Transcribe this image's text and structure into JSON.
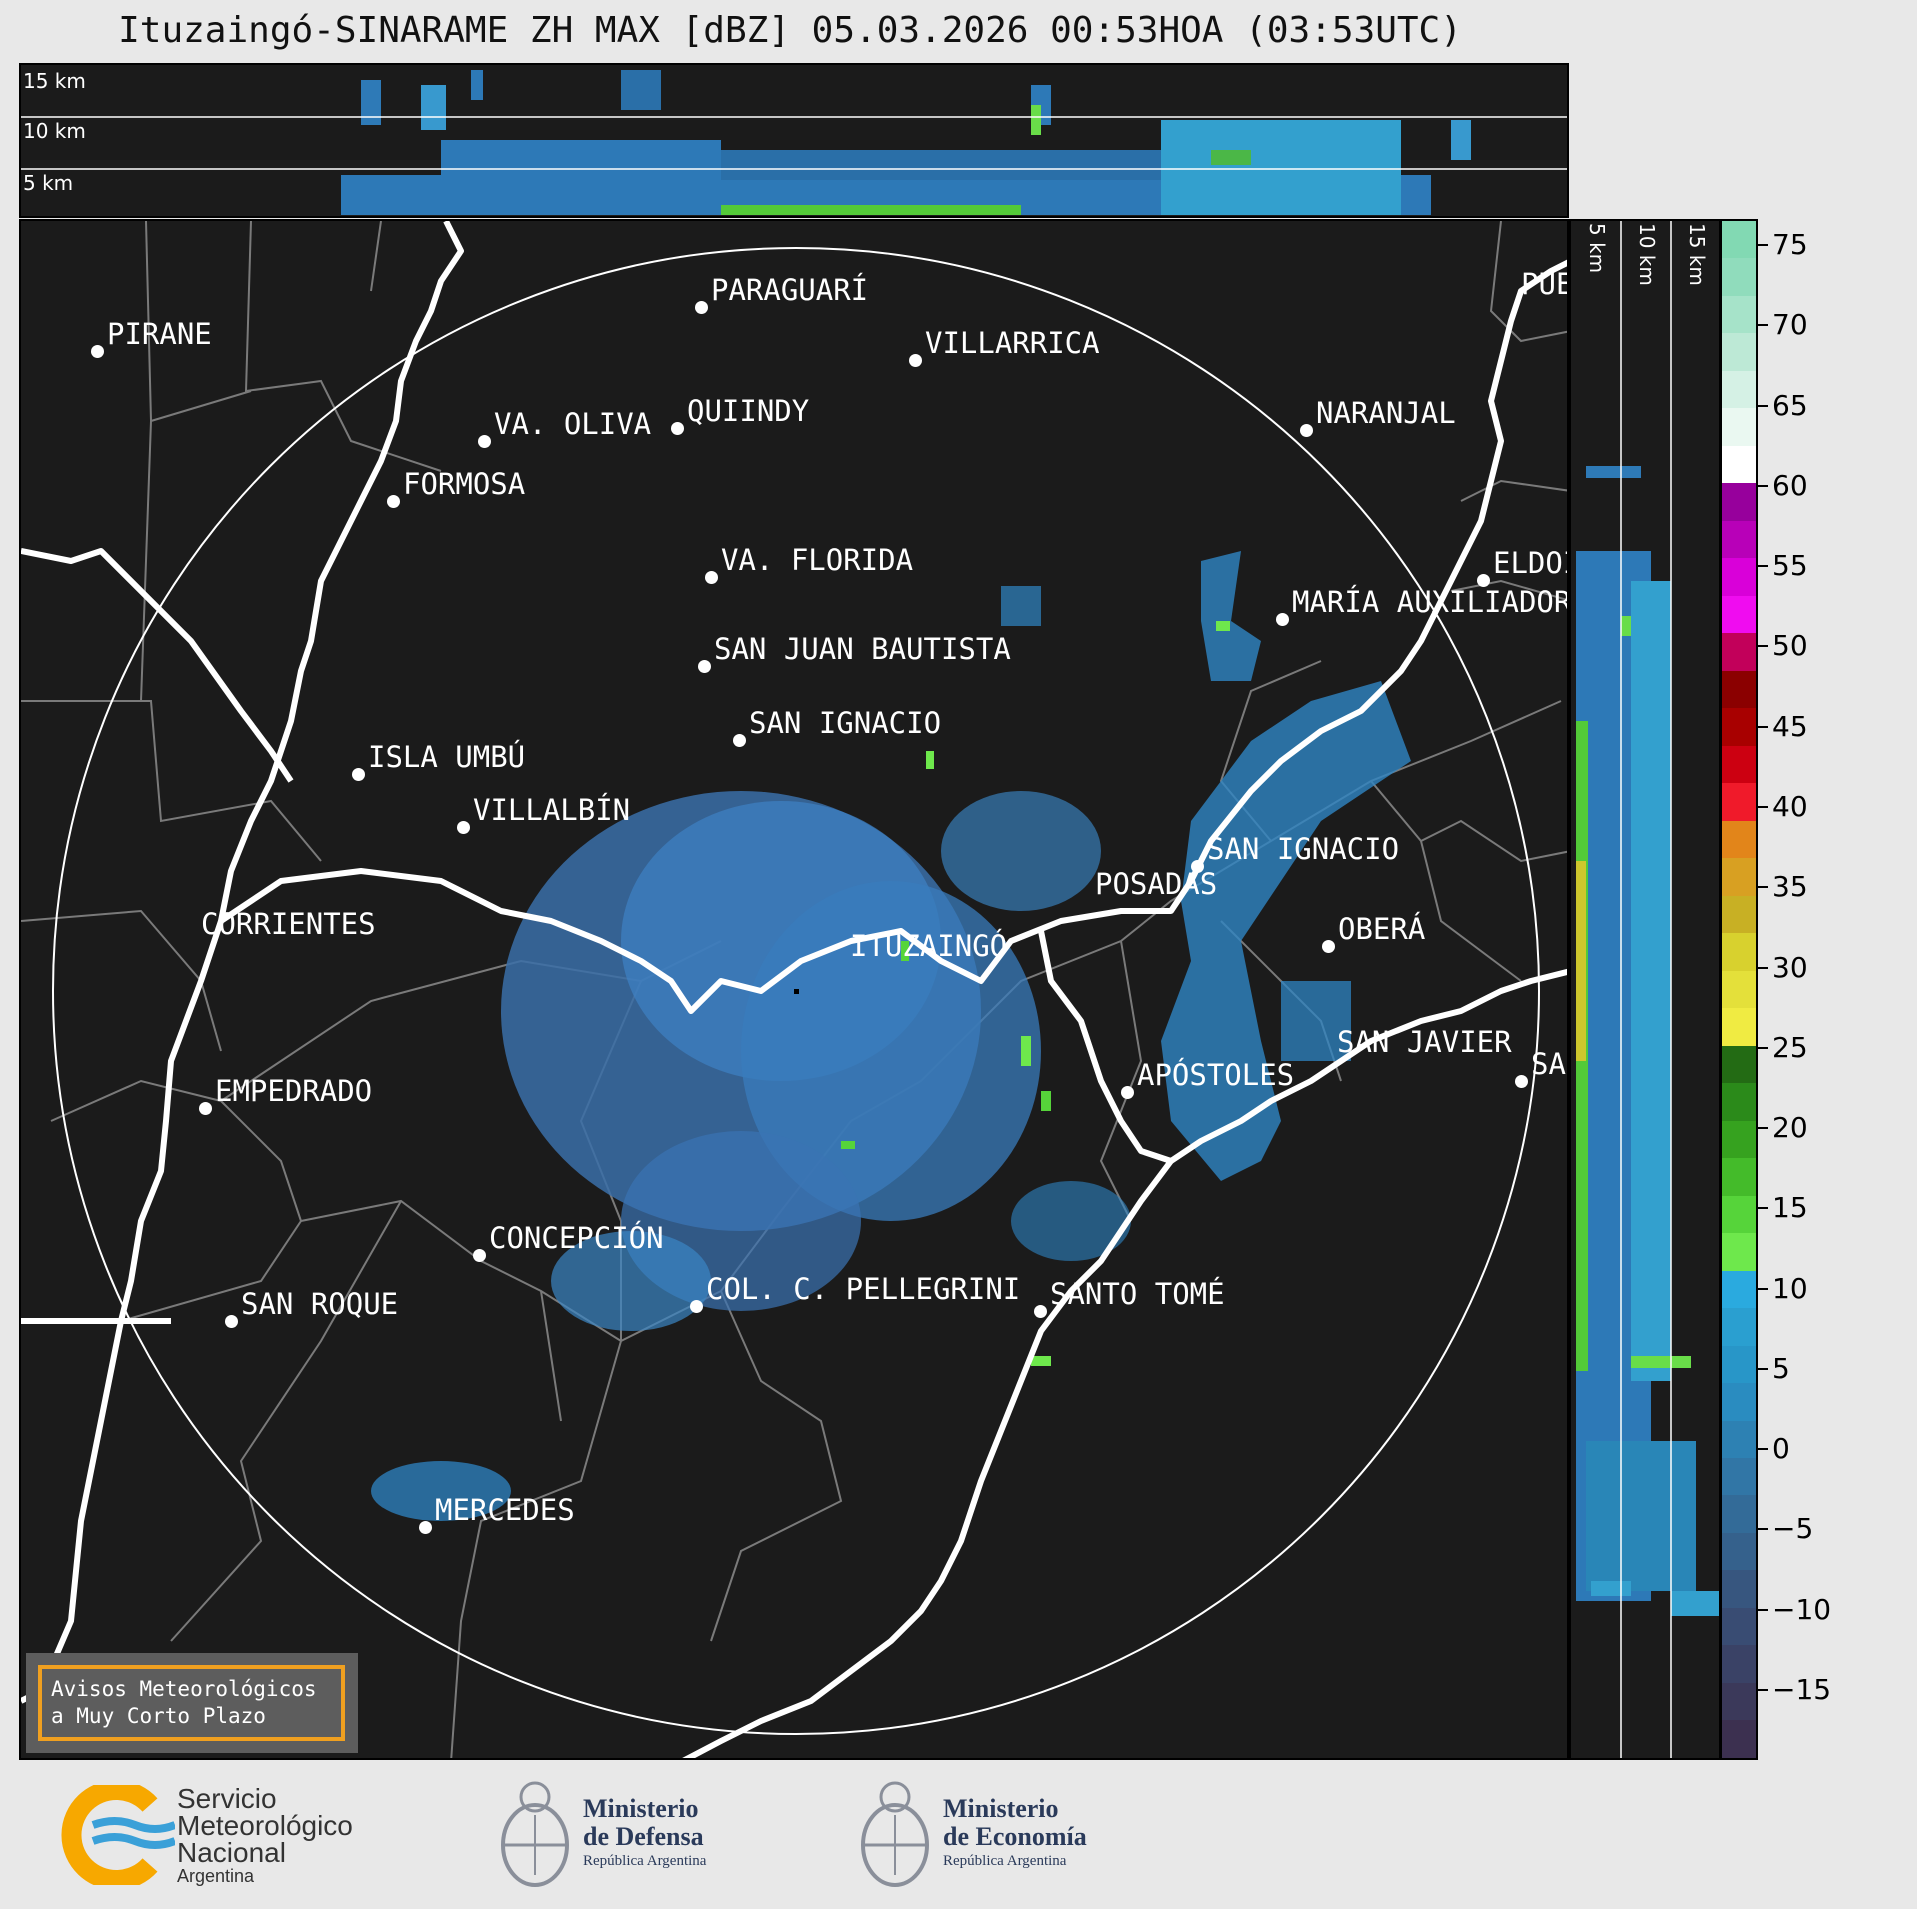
{
  "title": "Ituzaingó-SINARAME ZH MAX [dBZ] 05.03.2026 00:53HOA (03:53UTC)",
  "cross_section_top": {
    "levels": [
      "15 km",
      "10 km",
      "5 km"
    ]
  },
  "cross_section_right": {
    "levels": [
      "5 km",
      "10 km",
      "15 km"
    ]
  },
  "cities": [
    {
      "name": "PIRANE"
    },
    {
      "name": "PARAGUARÍ"
    },
    {
      "name": "VILLARRICA"
    },
    {
      "name": "QUIINDY"
    },
    {
      "name": "VA. OLIVA"
    },
    {
      "name": "NARANJAL"
    },
    {
      "name": "FORMOSA"
    },
    {
      "name": "PUEI"
    },
    {
      "name": "VA. FLORIDA"
    },
    {
      "name": "ELDOI"
    },
    {
      "name": "MARÍA AUXILIADOR"
    },
    {
      "name": "SAN JUAN BAUTISTA"
    },
    {
      "name": "SAN IGNACIO"
    },
    {
      "name": "ISLA UMBÚ"
    },
    {
      "name": "VILLALBÍN"
    },
    {
      "name": "SAN IGNACIO"
    },
    {
      "name": "POSADAS"
    },
    {
      "name": "CORRIENTES"
    },
    {
      "name": "ITUZAINGÓ"
    },
    {
      "name": "OBERÁ"
    },
    {
      "name": "APÓSTOLES"
    },
    {
      "name": "SAN JAVIER"
    },
    {
      "name": "SAI"
    },
    {
      "name": "EMPEDRADO"
    },
    {
      "name": "CONCEPCIÓN"
    },
    {
      "name": "COL. C. PELLEGRINI"
    },
    {
      "name": "SANTO TOMÉ"
    },
    {
      "name": "SAN ROQUE"
    },
    {
      "name": "MERCEDES"
    }
  ],
  "colorbar": {
    "unit": "dBZ",
    "ticks": [
      "75",
      "70",
      "65",
      "60",
      "55",
      "50",
      "45",
      "40",
      "35",
      "30",
      "25",
      "20",
      "15",
      "10",
      "5",
      "0",
      "−5",
      "−10",
      "−15"
    ],
    "colors_top_to_bottom": [
      "#82d9b3",
      "#90dcbc",
      "#a6e3c9",
      "#bde9d6",
      "#d5f1e5",
      "#eaf8f1",
      "#ffffff",
      "#97009c",
      "#b800b8",
      "#d900d9",
      "#f00cf0",
      "#c2005a",
      "#8b0000",
      "#a80000",
      "#cc0011",
      "#f01a2a",
      "#e2851a",
      "#d8a022",
      "#c8b024",
      "#d8d12e",
      "#e4e03a",
      "#f0eb42",
      "#236b14",
      "#2b8a1a",
      "#36a21f",
      "#44bb2a",
      "#56d43a",
      "#6ee84c",
      "#2aaadf",
      "#2a9fd0",
      "#2896c8",
      "#2a8cc0",
      "#2d81b3",
      "#3176a6",
      "#336b98",
      "#35618c",
      "#37567f",
      "#394c73",
      "#3a4266",
      "#3b395a",
      "#3c3050"
    ]
  },
  "warning_box": {
    "line1": "Avisos Meteorológicos",
    "line2": "a Muy Corto Plazo"
  },
  "logos": {
    "smn": {
      "line1": "Servicio",
      "line2": "Meteorológico",
      "line3": "Nacional",
      "line4": "Argentina"
    },
    "defensa": {
      "line1": "Ministerio",
      "line2": "de Defensa",
      "line3": "República Argentina"
    },
    "economia": {
      "line1": "Ministerio",
      "line2": "de Economía",
      "line3": "República Argentina"
    }
  },
  "colors": {
    "background_map": "#1b1b1b",
    "page_background": "#e8e8e8",
    "warning_border": "#f0a020",
    "echo_weak": "#2f7fc0",
    "echo_mid": "#3aa0d8",
    "echo_strong": "#6ee84c"
  }
}
